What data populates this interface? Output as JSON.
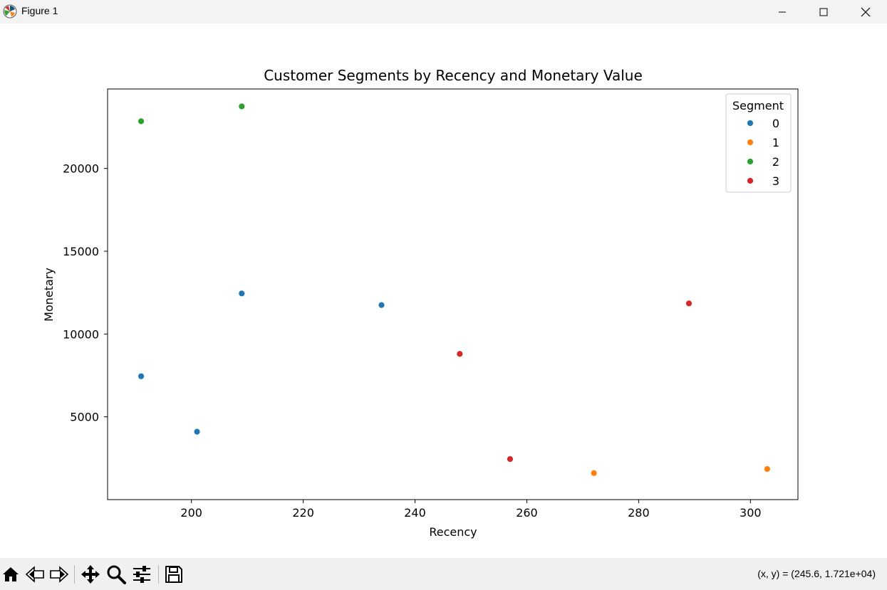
{
  "window": {
    "title": "Figure 1",
    "controls": [
      "minimize",
      "maximize",
      "close"
    ]
  },
  "toolbar": {
    "buttons": [
      {
        "name": "home-icon"
      },
      {
        "name": "back-icon"
      },
      {
        "name": "forward-icon"
      },
      {
        "name": "pan-icon"
      },
      {
        "name": "zoom-icon"
      },
      {
        "name": "configure-subplots-icon"
      },
      {
        "name": "save-icon"
      }
    ],
    "coords_text": "(x, y) = (245.6, 1.721e+04)"
  },
  "chart_data": {
    "type": "scatter",
    "title": "Customer Segments by Recency and Monetary Value",
    "xlabel": "Recency",
    "ylabel": "Monetary",
    "xlim": [
      185,
      308.5
    ],
    "ylim": [
      0,
      24800
    ],
    "xticks": [
      200,
      220,
      240,
      260,
      280,
      300
    ],
    "yticks": [
      5000,
      10000,
      15000,
      20000
    ],
    "grid": false,
    "legend": {
      "title": "Segment",
      "placement": "top-right",
      "entries": [
        "0",
        "1",
        "2",
        "3"
      ]
    },
    "series": [
      {
        "name": "0",
        "color": "#1f77b4",
        "points": [
          [
            191,
            7450
          ],
          [
            201,
            4100
          ],
          [
            209,
            12450
          ],
          [
            234,
            11750
          ]
        ]
      },
      {
        "name": "1",
        "color": "#ff7f0e",
        "points": [
          [
            272,
            1600
          ],
          [
            303,
            1850
          ]
        ]
      },
      {
        "name": "2",
        "color": "#2ca02c",
        "points": [
          [
            191,
            22850
          ],
          [
            209,
            23750
          ]
        ]
      },
      {
        "name": "3",
        "color": "#d62728",
        "points": [
          [
            248,
            8800
          ],
          [
            257,
            2450
          ],
          [
            289,
            11850
          ]
        ]
      }
    ]
  }
}
